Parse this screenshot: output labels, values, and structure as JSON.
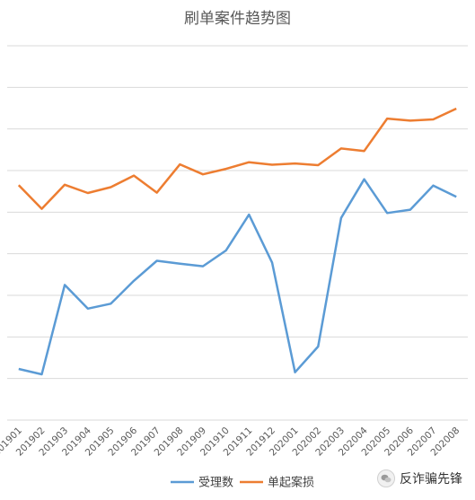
{
  "chart_data": {
    "type": "line",
    "title": "刷单案件趋势图",
    "categories": [
      "201901",
      "201902",
      "201903",
      "201904",
      "201905",
      "201906",
      "201907",
      "201908",
      "201909",
      "201910",
      "201911",
      "201912",
      "202001",
      "202002",
      "202003",
      "202004",
      "202005",
      "202006",
      "202007",
      "202008"
    ],
    "series": [
      {
        "name": "受理数",
        "color": "#5b9bd5",
        "values": [
          23,
          10,
          225,
          168,
          180,
          235,
          283,
          276,
          270,
          308,
          394,
          279,
          15,
          77,
          386,
          479,
          398,
          406,
          464,
          437
        ]
      },
      {
        "name": "单起案损",
        "color": "#ed7d31",
        "values": [
          465,
          408,
          466,
          446,
          460,
          488,
          447,
          515,
          491,
          504,
          520,
          514,
          517,
          513,
          553,
          547,
          625,
          620,
          623,
          649
        ]
      }
    ],
    "ylim": [
      -100,
      800
    ],
    "grid": true,
    "y_tick_labels": false,
    "legend": "bottom"
  },
  "watermark": {
    "text": "反诈骗先锋",
    "icon": "wechat-icon"
  }
}
